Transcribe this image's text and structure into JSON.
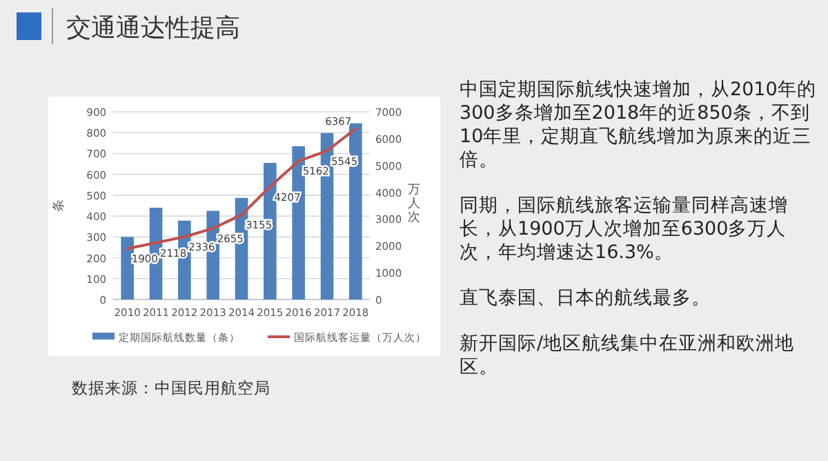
{
  "chart_data": {
    "type": "bar",
    "title": "交通通达性提高",
    "categories": [
      "2010",
      "2011",
      "2012",
      "2013",
      "2014",
      "2015",
      "2016",
      "2017",
      "2018"
    ],
    "series": [
      {
        "name": "定期国际航线数量（条）",
        "color": "#4f81bd",
        "values": [
          300,
          440,
          378,
          425,
          487,
          655,
          735,
          798,
          845
        ]
      },
      {
        "name": "国际航线客运量（万人次）",
        "type": "line",
        "axis": "y2",
        "color": "#c0504d",
        "values": [
          1900,
          2118,
          2336,
          2655,
          3155,
          4207,
          5162,
          5545,
          6367
        ],
        "value_labels": [
          "1900",
          "2118",
          "2336",
          "2655",
          "3155",
          "4207",
          "5162",
          "5545",
          "6367"
        ]
      }
    ],
    "ylabel": "条",
    "y2label": "万人次",
    "ylim": [
      0,
      900
    ],
    "yticks": [
      0,
      100,
      200,
      300,
      400,
      500,
      600,
      700,
      800,
      900
    ],
    "y2lim": [
      0,
      7000
    ],
    "y2ticks": [
      0,
      1000,
      2000,
      3000,
      4000,
      5000,
      6000,
      7000
    ],
    "grid": "y",
    "legend": "bottom",
    "annotations": [
      "中国定期国际航线快速增加，从2010年的300多条增加至2018年的近850条，不到10年里，定期直飞航线增加为原来的近三倍。",
      "同期，国际航线旅客运输量同样高速增长，从1900万人次增加至6300多万人次，年均增速达16.3%。",
      "直飞泰国、日本的航线最多。",
      "新开国际/地区航线集中在亚洲和欧洲地区。",
      "数据来源：中国民用航空局"
    ]
  }
}
